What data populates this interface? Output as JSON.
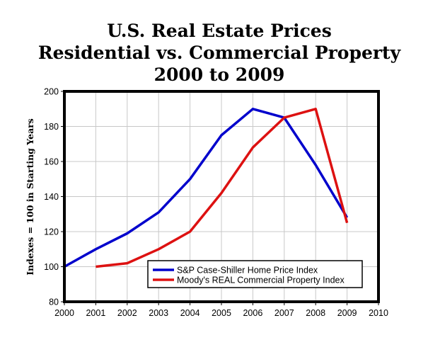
{
  "chart_data": {
    "type": "line",
    "title_lines": [
      "U.S. Real Estate Prices",
      "Residential vs. Commercial Property",
      "2000 to 2009"
    ],
    "ylabel": "Indexes = 100 in Starting Years",
    "xlabel": "",
    "xlim": [
      2000,
      2010
    ],
    "ylim": [
      80,
      200
    ],
    "x_ticks": [
      "2000",
      "2001",
      "2002",
      "2003",
      "2004",
      "2005",
      "2006",
      "2007",
      "2008",
      "2009",
      "2010"
    ],
    "y_ticks": [
      "80",
      "100",
      "120",
      "140",
      "160",
      "180",
      "200"
    ],
    "grid": true,
    "legend_position": "bottom-right",
    "series": [
      {
        "name": "S&P Case-Shiller Home Price Index",
        "color": "#0000cc",
        "x": [
          2000,
          2001,
          2002,
          2003,
          2004,
          2005,
          2006,
          2007,
          2008,
          2009
        ],
        "values": [
          100,
          110,
          119,
          131,
          150,
          175,
          190,
          185,
          158,
          128
        ]
      },
      {
        "name": "Moody's REAL Commercial Property Index",
        "color": "#dd1111",
        "x": [
          2001,
          2002,
          2003,
          2004,
          2005,
          2006,
          2007,
          2008,
          2009
        ],
        "values": [
          100,
          102,
          110,
          120,
          142,
          168,
          185,
          190,
          125
        ]
      }
    ]
  }
}
